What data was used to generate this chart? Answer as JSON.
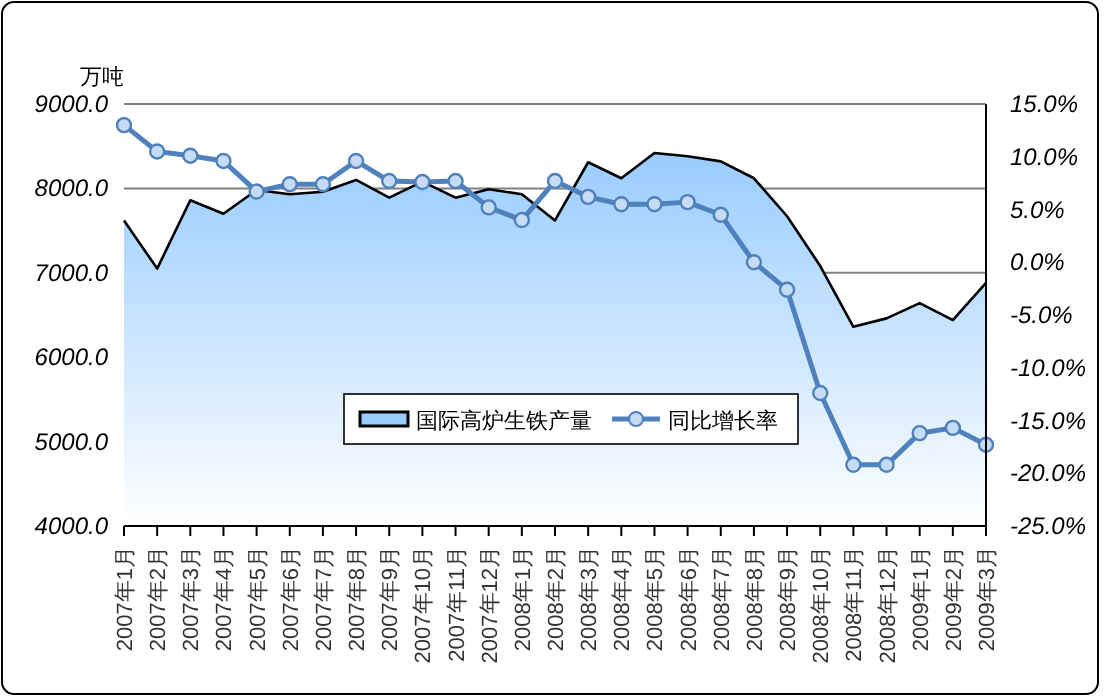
{
  "chart_data": {
    "type": "area",
    "ylabel": "万吨",
    "categories": [
      "2007年1月",
      "2007年2月",
      "2007年3月",
      "2007年4月",
      "2007年5月",
      "2007年6月",
      "2007年7月",
      "2007年8月",
      "2007年9月",
      "2007年10月",
      "2007年11月",
      "2007年12月",
      "2008年1月",
      "2008年2月",
      "2008年3月",
      "2008年4月",
      "2008年5月",
      "2008年6月",
      "2008年7月",
      "2008年8月",
      "2008年9月",
      "2008年10月",
      "2008年11月",
      "2008年12月",
      "2009年1月",
      "2009年2月",
      "2009年3月"
    ],
    "series": [
      {
        "name": "国际高炉生铁产量",
        "color": "#99ccff",
        "values": [
          7620,
          7050,
          7860,
          7700,
          7980,
          7930,
          7960,
          8100,
          7890,
          8080,
          7890,
          7990,
          7930,
          7620,
          8310,
          8120,
          8420,
          8380,
          8320,
          8120,
          7670,
          7080,
          6360,
          6460,
          6640,
          6440,
          6880
        ]
      },
      {
        "name": "同比增长率",
        "type": "line",
        "axis": "y2",
        "color": "#4f81bd",
        "marker": "circle",
        "values": [
          13.0,
          10.5,
          10.1,
          9.6,
          6.7,
          7.4,
          7.4,
          9.6,
          7.7,
          7.6,
          7.7,
          5.2,
          4.0,
          7.7,
          6.2,
          5.5,
          5.5,
          5.7,
          4.5,
          0.0,
          -2.6,
          -12.4,
          -19.2,
          -19.2,
          -16.2,
          -15.7,
          -17.3
        ]
      }
    ],
    "ylim": [
      4000,
      9000
    ],
    "yticks": [
      {
        "value": 4000,
        "label": "4000.0"
      },
      {
        "value": 5000,
        "label": "5000.0"
      },
      {
        "value": 6000,
        "label": "6000.0"
      },
      {
        "value": 7000,
        "label": "7000.0"
      },
      {
        "value": 8000,
        "label": "8000.0"
      },
      {
        "value": 9000,
        "label": "9000.0"
      }
    ],
    "y2lim": [
      -25,
      15
    ],
    "y2ticks": [
      {
        "value": -25,
        "label": "-25.0%"
      },
      {
        "value": -20,
        "label": "-20.0%"
      },
      {
        "value": -15,
        "label": "-15.0%"
      },
      {
        "value": -10,
        "label": "-10.0%"
      },
      {
        "value": -5,
        "label": "-5.0%"
      },
      {
        "value": 0,
        "label": "0.0%"
      },
      {
        "value": 5,
        "label": "5.0%"
      },
      {
        "value": 10,
        "label": "10.0%"
      },
      {
        "value": 15,
        "label": "15.0%"
      }
    ],
    "grid": "y",
    "legend": "bottom"
  }
}
